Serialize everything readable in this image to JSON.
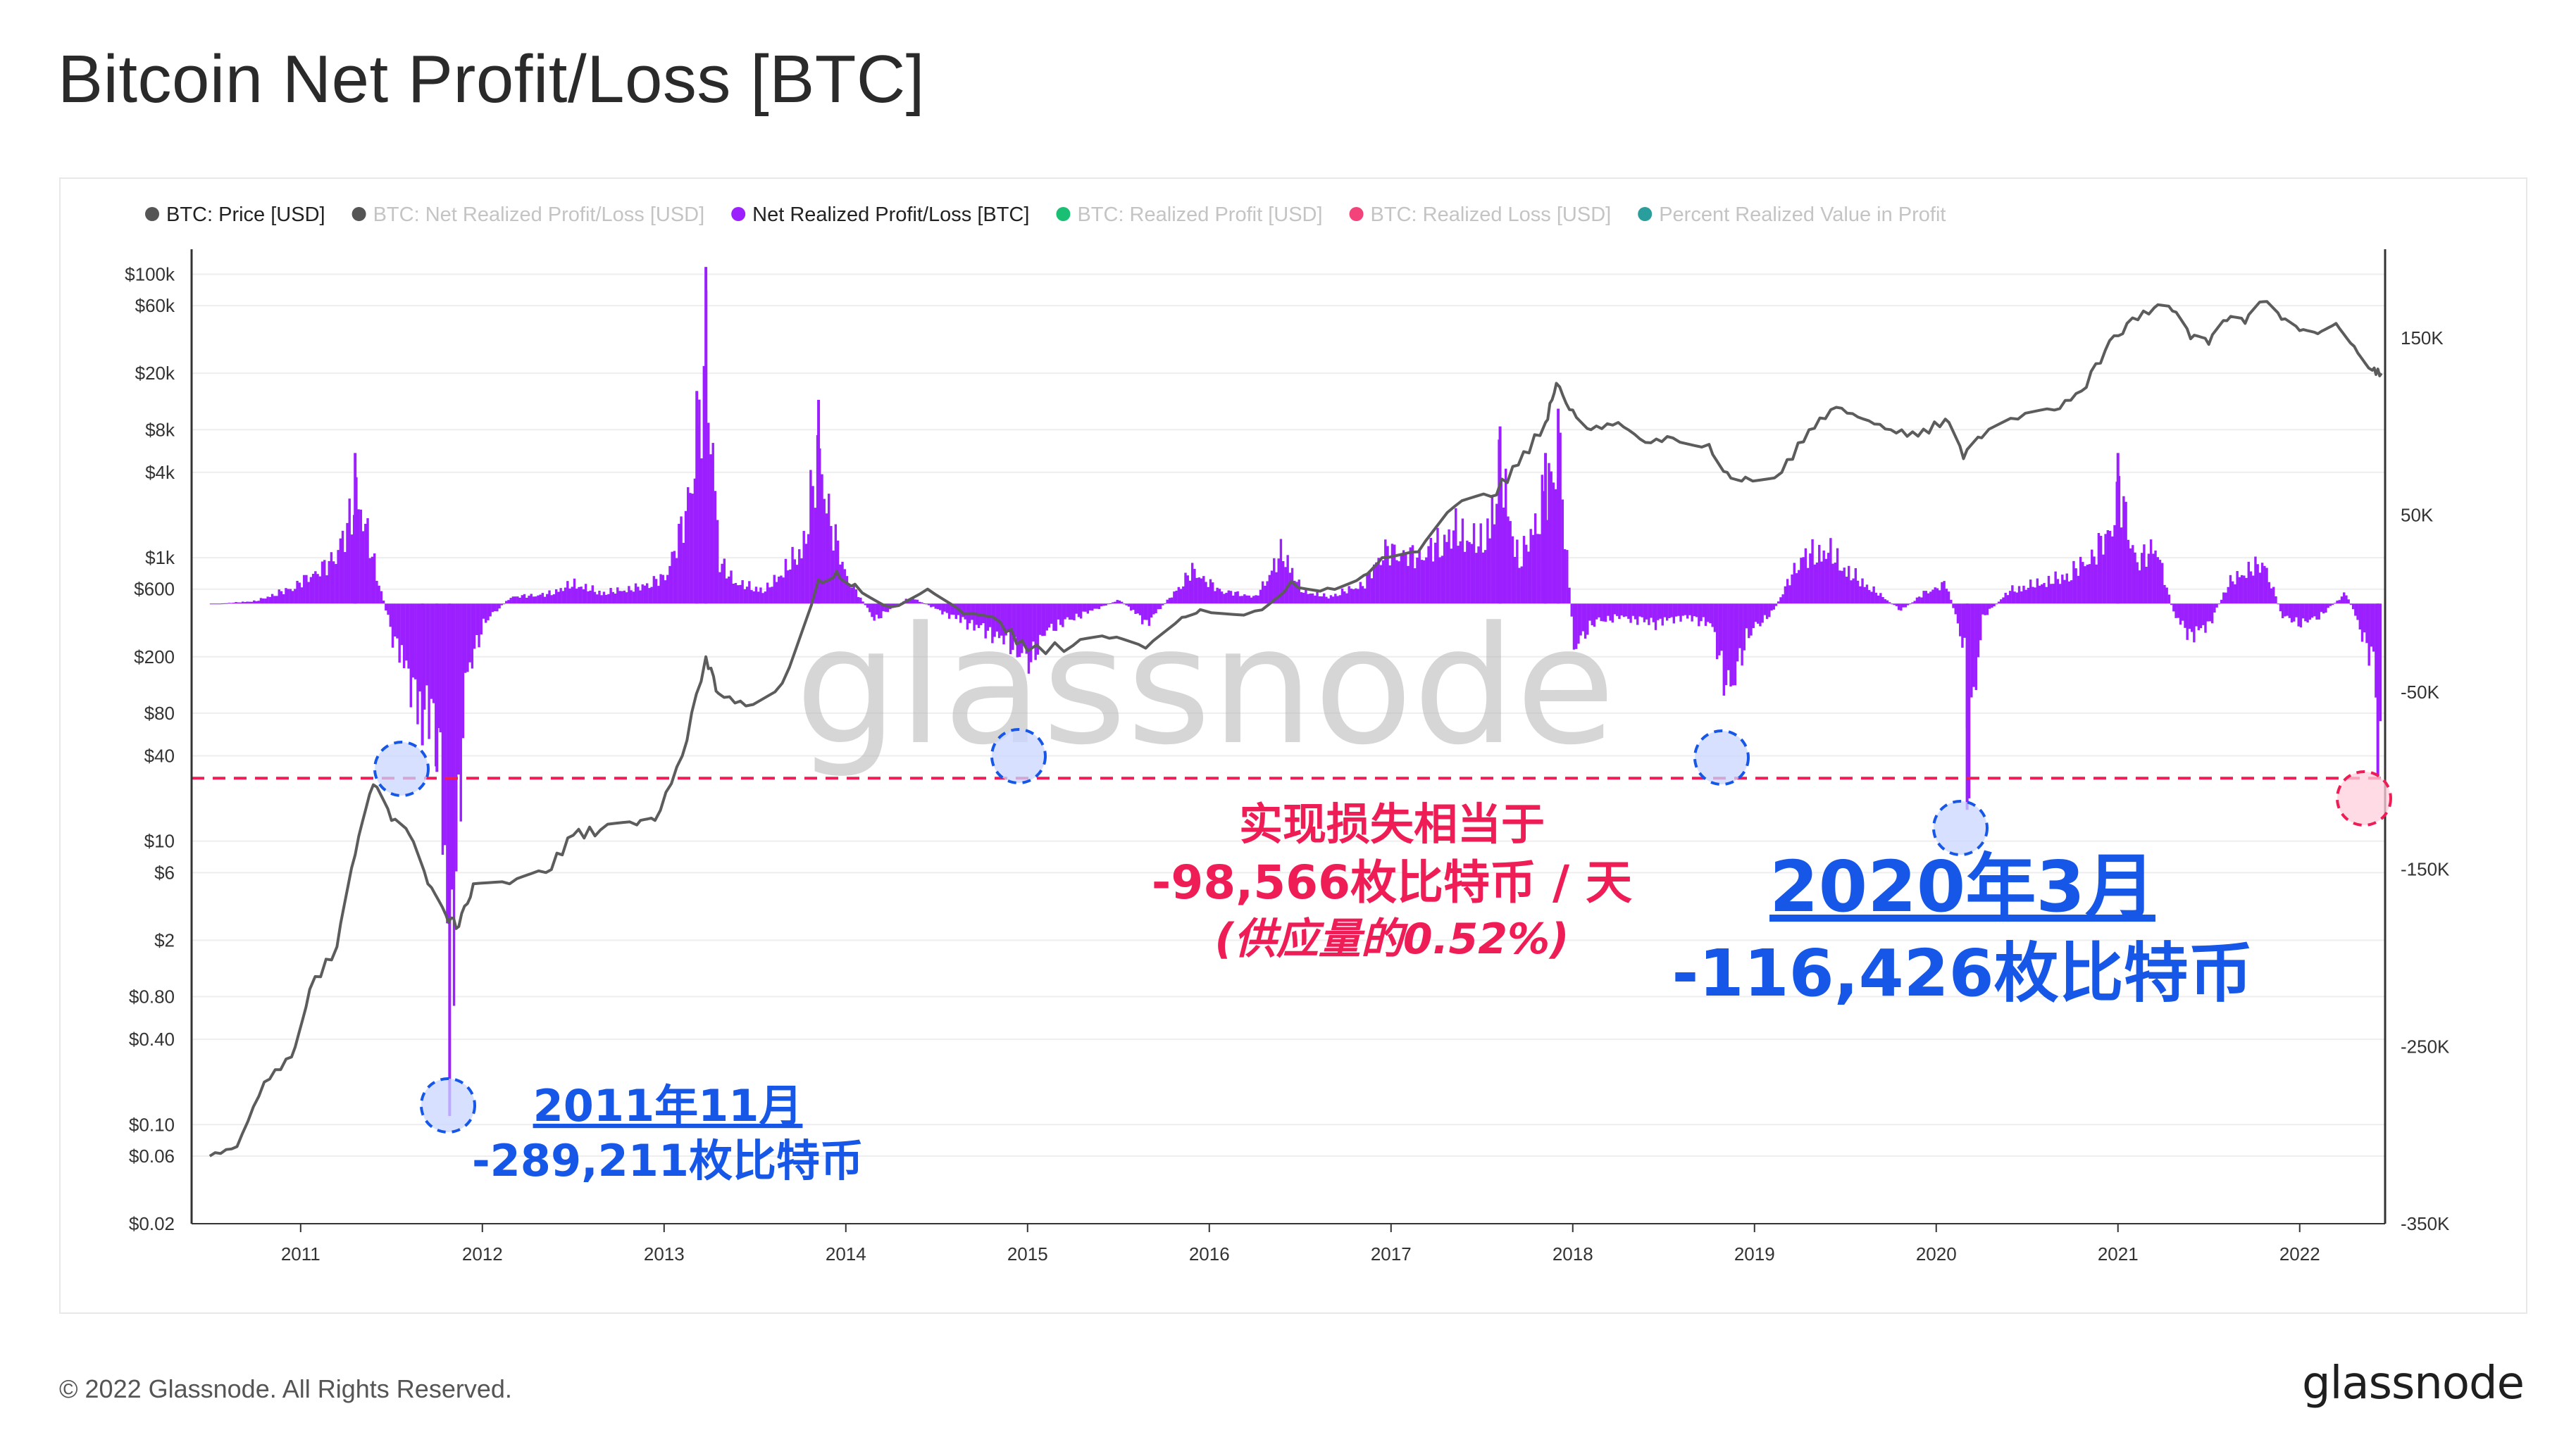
{
  "title": "Bitcoin Net Profit/Loss [BTC]",
  "footer": {
    "copyright": "© 2022 Glassnode. All Rights Reserved.",
    "logo": "glassnode"
  },
  "watermark": "glassnode",
  "legend": [
    {
      "label": "BTC: Price [USD]",
      "color": "#555555",
      "active": true
    },
    {
      "label": "BTC: Net Realized Profit/Loss [USD]",
      "color": "#555555",
      "active": false
    },
    {
      "label": "Net Realized Profit/Loss [BTC]",
      "color": "#9b1fff",
      "active": true
    },
    {
      "label": "BTC: Realized Profit [USD]",
      "color": "#1bbf73",
      "active": false
    },
    {
      "label": "BTC: Realized Loss [USD]",
      "color": "#f2447a",
      "active": false
    },
    {
      "label": "Percent Realized Value in Profit",
      "color": "#2a9d9d",
      "active": false
    }
  ],
  "colors": {
    "price_line": "#5c5c5c",
    "bars": "#9b1fff",
    "reference_line": "#ef1d56",
    "annotation_blue": "#1657e8",
    "annotation_red": "#ef1d56"
  },
  "chart_data": {
    "type": "bar",
    "title": "Bitcoin Net Profit/Loss [BTC]",
    "x_range": [
      2010.45,
      2022.52
    ],
    "x_ticks": [
      "2011",
      "2012",
      "2013",
      "2014",
      "2015",
      "2016",
      "2017",
      "2018",
      "2019",
      "2020",
      "2021",
      "2022"
    ],
    "left_axis": {
      "scale": "log",
      "range": [
        0.02,
        150000
      ],
      "ticks": [
        {
          "label": "$100k",
          "value": 100000
        },
        {
          "label": "$60k",
          "value": 60000
        },
        {
          "label": "$20k",
          "value": 20000
        },
        {
          "label": "$8k",
          "value": 8000
        },
        {
          "label": "$4k",
          "value": 4000
        },
        {
          "label": "$1k",
          "value": 1000
        },
        {
          "label": "$600",
          "value": 600
        },
        {
          "label": "$200",
          "value": 200
        },
        {
          "label": "$80",
          "value": 80
        },
        {
          "label": "$40",
          "value": 40
        },
        {
          "label": "$10",
          "value": 10
        },
        {
          "label": "$6",
          "value": 6
        },
        {
          "label": "$2",
          "value": 2
        },
        {
          "label": "$0.80",
          "value": 0.8
        },
        {
          "label": "$0.40",
          "value": 0.4
        },
        {
          "label": "$0.10",
          "value": 0.1
        },
        {
          "label": "$0.06",
          "value": 0.06
        },
        {
          "label": "$0.02",
          "value": 0.02
        }
      ]
    },
    "right_axis": {
      "scale": "linear",
      "range": [
        -350000,
        200000
      ],
      "ticks": [
        {
          "label": "150K",
          "value": 150000
        },
        {
          "label": "50K",
          "value": 50000
        },
        {
          "label": "-50K",
          "value": -50000
        },
        {
          "label": "-150K",
          "value": -150000
        },
        {
          "label": "-250K",
          "value": -250000
        },
        {
          "label": "-350K",
          "value": -350000
        }
      ]
    },
    "series": [
      {
        "name": "BTC: Price [USD]",
        "type": "line",
        "axis": "left",
        "points": [
          [
            2010.55,
            0.06
          ],
          [
            2010.7,
            0.07
          ],
          [
            2010.85,
            0.2
          ],
          [
            2011.0,
            0.3
          ],
          [
            2011.1,
            0.9
          ],
          [
            2011.25,
            1.8
          ],
          [
            2011.35,
            8
          ],
          [
            2011.45,
            25
          ],
          [
            2011.55,
            14
          ],
          [
            2011.65,
            11
          ],
          [
            2011.75,
            5
          ],
          [
            2011.85,
            3
          ],
          [
            2011.92,
            2.5
          ],
          [
            2012.0,
            5
          ],
          [
            2012.2,
            5
          ],
          [
            2012.4,
            6
          ],
          [
            2012.55,
            11
          ],
          [
            2012.7,
            12
          ],
          [
            2012.9,
            13
          ],
          [
            2013.0,
            14
          ],
          [
            2013.15,
            40
          ],
          [
            2013.28,
            200
          ],
          [
            2013.35,
            110
          ],
          [
            2013.5,
            90
          ],
          [
            2013.7,
            130
          ],
          [
            2013.9,
            700
          ],
          [
            2014.0,
            800
          ],
          [
            2014.1,
            650
          ],
          [
            2014.3,
            450
          ],
          [
            2014.5,
            600
          ],
          [
            2014.7,
            400
          ],
          [
            2014.9,
            350
          ],
          [
            2015.05,
            220
          ],
          [
            2015.3,
            240
          ],
          [
            2015.5,
            270
          ],
          [
            2015.7,
            230
          ],
          [
            2015.9,
            380
          ],
          [
            2016.0,
            430
          ],
          [
            2016.3,
            420
          ],
          [
            2016.5,
            680
          ],
          [
            2016.7,
            610
          ],
          [
            2016.9,
            750
          ],
          [
            2017.0,
            1000
          ],
          [
            2017.2,
            1100
          ],
          [
            2017.4,
            2300
          ],
          [
            2017.6,
            2700
          ],
          [
            2017.75,
            4500
          ],
          [
            2017.9,
            9000
          ],
          [
            2017.96,
            17000
          ],
          [
            2018.05,
            11000
          ],
          [
            2018.15,
            8000
          ],
          [
            2018.3,
            9000
          ],
          [
            2018.45,
            6500
          ],
          [
            2018.6,
            7000
          ],
          [
            2018.8,
            6300
          ],
          [
            2018.9,
            4000
          ],
          [
            2019.0,
            3700
          ],
          [
            2019.2,
            4000
          ],
          [
            2019.35,
            8000
          ],
          [
            2019.5,
            11500
          ],
          [
            2019.65,
            9500
          ],
          [
            2019.8,
            8000
          ],
          [
            2019.95,
            7200
          ],
          [
            2020.1,
            9500
          ],
          [
            2020.2,
            5000
          ],
          [
            2020.3,
            7000
          ],
          [
            2020.5,
            9500
          ],
          [
            2020.7,
            11000
          ],
          [
            2020.85,
            15000
          ],
          [
            2020.98,
            29000
          ],
          [
            2021.1,
            45000
          ],
          [
            2021.25,
            58000
          ],
          [
            2021.35,
            55000
          ],
          [
            2021.45,
            35000
          ],
          [
            2021.55,
            32000
          ],
          [
            2021.65,
            47000
          ],
          [
            2021.75,
            45000
          ],
          [
            2021.85,
            64000
          ],
          [
            2021.95,
            48000
          ],
          [
            2022.05,
            40000
          ],
          [
            2022.15,
            38000
          ],
          [
            2022.25,
            45000
          ],
          [
            2022.35,
            31000
          ],
          [
            2022.45,
            21000
          ],
          [
            2022.5,
            20000
          ]
        ]
      },
      {
        "name": "Net Realized Profit/Loss [BTC]",
        "type": "bar",
        "axis": "right",
        "points": [
          [
            2010.6,
            0
          ],
          [
            2010.8,
            2000
          ],
          [
            2011.0,
            12000
          ],
          [
            2011.2,
            30000
          ],
          [
            2011.3,
            55000
          ],
          [
            2011.35,
            85000
          ],
          [
            2011.45,
            30000
          ],
          [
            2011.55,
            -25000
          ],
          [
            2011.65,
            -60000
          ],
          [
            2011.72,
            -80000
          ],
          [
            2011.8,
            -95000
          ],
          [
            2011.87,
            -289211
          ],
          [
            2011.95,
            -60000
          ],
          [
            2012.05,
            -15000
          ],
          [
            2012.2,
            5000
          ],
          [
            2012.4,
            7000
          ],
          [
            2012.55,
            15000
          ],
          [
            2012.7,
            8000
          ],
          [
            2012.9,
            12000
          ],
          [
            2013.05,
            20000
          ],
          [
            2013.15,
            60000
          ],
          [
            2013.23,
            120000
          ],
          [
            2013.28,
            190000
          ],
          [
            2013.35,
            30000
          ],
          [
            2013.45,
            15000
          ],
          [
            2013.6,
            10000
          ],
          [
            2013.8,
            40000
          ],
          [
            2013.9,
            115000
          ],
          [
            2013.96,
            60000
          ],
          [
            2014.05,
            20000
          ],
          [
            2014.2,
            -12000
          ],
          [
            2014.4,
            5000
          ],
          [
            2014.6,
            -8000
          ],
          [
            2014.8,
            -20000
          ],
          [
            2014.95,
            -30000
          ],
          [
            2015.05,
            -45000
          ],
          [
            2015.15,
            -20000
          ],
          [
            2015.35,
            -8000
          ],
          [
            2015.55,
            3000
          ],
          [
            2015.7,
            -15000
          ],
          [
            2015.85,
            8000
          ],
          [
            2015.95,
            25000
          ],
          [
            2016.1,
            10000
          ],
          [
            2016.3,
            5000
          ],
          [
            2016.45,
            40000
          ],
          [
            2016.55,
            10000
          ],
          [
            2016.7,
            5000
          ],
          [
            2016.9,
            15000
          ],
          [
            2017.0,
            40000
          ],
          [
            2017.2,
            35000
          ],
          [
            2017.4,
            55000
          ],
          [
            2017.55,
            45000
          ],
          [
            2017.65,
            100000
          ],
          [
            2017.75,
            30000
          ],
          [
            2017.9,
            85000
          ],
          [
            2017.97,
            110000
          ],
          [
            2018.05,
            -35000
          ],
          [
            2018.15,
            -15000
          ],
          [
            2018.3,
            -10000
          ],
          [
            2018.5,
            -15000
          ],
          [
            2018.65,
            -10000
          ],
          [
            2018.8,
            -15000
          ],
          [
            2018.88,
            -55000
          ],
          [
            2018.92,
            -65000
          ],
          [
            2019.0,
            -25000
          ],
          [
            2019.15,
            -5000
          ],
          [
            2019.3,
            35000
          ],
          [
            2019.45,
            40000
          ],
          [
            2019.55,
            25000
          ],
          [
            2019.7,
            10000
          ],
          [
            2019.85,
            -5000
          ],
          [
            2019.98,
            8000
          ],
          [
            2020.1,
            15000
          ],
          [
            2020.2,
            -35000
          ],
          [
            2020.22,
            -116426
          ],
          [
            2020.3,
            -10000
          ],
          [
            2020.45,
            10000
          ],
          [
            2020.6,
            15000
          ],
          [
            2020.75,
            20000
          ],
          [
            2020.9,
            35000
          ],
          [
            2021.0,
            55000
          ],
          [
            2021.05,
            85000
          ],
          [
            2021.15,
            30000
          ],
          [
            2021.25,
            45000
          ],
          [
            2021.35,
            -8000
          ],
          [
            2021.45,
            -25000
          ],
          [
            2021.55,
            -15000
          ],
          [
            2021.65,
            15000
          ],
          [
            2021.75,
            25000
          ],
          [
            2021.85,
            30000
          ],
          [
            2021.95,
            -10000
          ],
          [
            2022.05,
            -15000
          ],
          [
            2022.15,
            -10000
          ],
          [
            2022.3,
            8000
          ],
          [
            2022.38,
            -20000
          ],
          [
            2022.45,
            -45000
          ],
          [
            2022.48,
            -98566
          ],
          [
            2022.5,
            -40000
          ]
        ]
      }
    ],
    "reference_line": {
      "axis": "right",
      "value": -98566
    }
  },
  "annotations": {
    "current": {
      "line1": "实现损失相当于",
      "line2": "-98,566枚比特币 / 天",
      "line3": "(供应量的0.52%)"
    },
    "mar2020": {
      "line1": "2020年3月",
      "line2": "-116,426枚比特币"
    },
    "nov2011": {
      "line1": "2011年11月",
      "line2": "-289,211枚比特币"
    }
  }
}
